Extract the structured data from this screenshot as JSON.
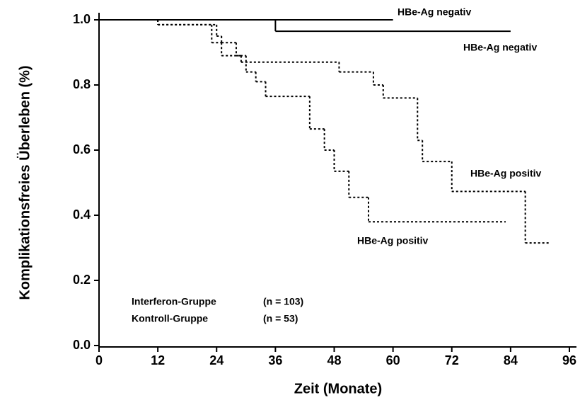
{
  "chart_data": {
    "type": "step",
    "xlabel": "Zeit (Monate)",
    "ylabel": "Komplikationsfreies Überleben (%)",
    "xlim": [
      0,
      96
    ],
    "xticks": [
      0,
      12,
      24,
      36,
      48,
      60,
      72,
      84,
      96
    ],
    "ylim": [
      0,
      1
    ],
    "yticks": [
      {
        "value": 0,
        "label": "0.0"
      },
      0.2,
      0.4,
      0.6,
      0.8,
      {
        "value": 1,
        "label": "1.0"
      }
    ],
    "groups": [
      [
        "Interferon-Gruppe",
        "(n = 103)"
      ],
      [
        "Kontroll-Gruppe",
        "(n = 53)"
      ]
    ],
    "series": [
      {
        "name": "HBe-Ag negativ",
        "color": "#000000",
        "style": "solid",
        "x": [
          0,
          60
        ],
        "values": [
          1.0,
          1.0
        ]
      },
      {
        "name": "HBe-Ag negativ",
        "color": "#000000",
        "style": "solid",
        "x": [
          0,
          36,
          84
        ],
        "values": [
          1.0,
          0.965,
          0.965
        ]
      },
      {
        "name": "HBe-Ag positiv",
        "color": "#000000",
        "style": "dotted",
        "x": [
          0,
          12,
          23,
          25,
          29,
          49,
          56,
          58,
          65,
          66,
          72,
          87,
          92
        ],
        "values": [
          1.0,
          0.985,
          0.93,
          0.89,
          0.87,
          0.84,
          0.8,
          0.76,
          0.63,
          0.565,
          0.473,
          0.315,
          0.315
        ]
      },
      {
        "name": "HBe-Ag positiv",
        "color": "#000000",
        "style": "dotted",
        "x": [
          0,
          12,
          24,
          25,
          28,
          30,
          32,
          34,
          43,
          46,
          48,
          51,
          55,
          83
        ],
        "values": [
          1.0,
          0.985,
          0.95,
          0.93,
          0.89,
          0.84,
          0.81,
          0.765,
          0.665,
          0.6,
          0.535,
          0.455,
          0.38,
          0.38
        ]
      }
    ]
  }
}
